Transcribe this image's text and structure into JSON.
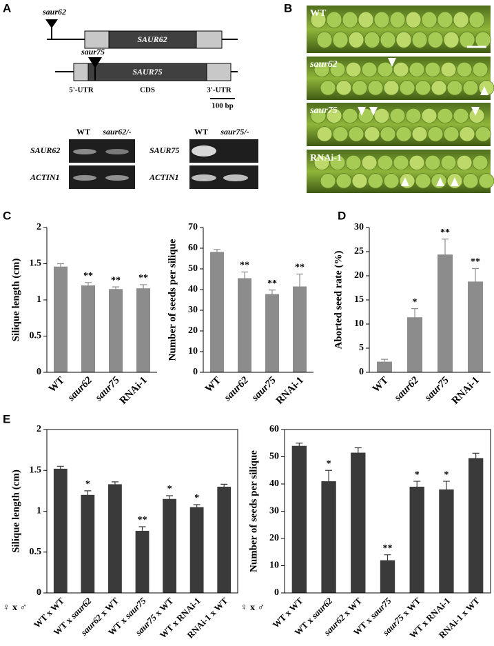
{
  "panel_labels": [
    "A",
    "B",
    "C",
    "D",
    "E"
  ],
  "gene_diagram": {
    "genes": [
      {
        "mutant": "saur62",
        "name": "SAUR62"
      },
      {
        "mutant": "saur75",
        "name": "SAUR75"
      }
    ],
    "regions": [
      "5'-UTR",
      "CDS",
      "3'-UTR"
    ],
    "scale_bar": "100 bp"
  },
  "gels": [
    {
      "lanes": [
        "WT",
        "saur62/-"
      ],
      "bands": [
        "SAUR62",
        "ACTIN1"
      ]
    },
    {
      "lanes": [
        "WT",
        "saur75/-"
      ],
      "bands": [
        "SAUR75",
        "ACTIN1"
      ]
    }
  ],
  "photos": [
    "WT",
    "saur62",
    "saur75",
    "RNAi-1"
  ],
  "chart_data": [
    {
      "type": "bar",
      "ylabel": "Silique length (cm)",
      "categories": [
        "WT",
        "saur62",
        "saur75",
        "RNAi-1"
      ],
      "values": [
        1.46,
        1.2,
        1.15,
        1.16
      ],
      "errors": [
        0.04,
        0.04,
        0.03,
        0.05
      ],
      "annotations": [
        null,
        "**",
        "**",
        "**"
      ],
      "color": "#8c8c8c",
      "ylim": [
        0,
        2
      ],
      "yticks": [
        0,
        0.5,
        1,
        1.5,
        2
      ],
      "frame": false
    },
    {
      "type": "bar",
      "ylabel": "Number of seeds per silique",
      "categories": [
        "WT",
        "saur62",
        "saur75",
        "RNAi-1"
      ],
      "values": [
        58.2,
        45.5,
        37.8,
        41.5
      ],
      "errors": [
        1.2,
        3,
        2,
        6
      ],
      "annotations": [
        null,
        "**",
        "**",
        "**"
      ],
      "color": "#8c8c8c",
      "ylim": [
        0,
        70
      ],
      "yticks": [
        0,
        10,
        20,
        30,
        40,
        50,
        60,
        70
      ],
      "frame": false
    },
    {
      "type": "bar",
      "ylabel": "Aborted seed rate (%)",
      "categories": [
        "WT",
        "saur62",
        "saur75",
        "RNAi-1"
      ],
      "values": [
        2.2,
        11.4,
        24.4,
        18.8
      ],
      "errors": [
        0.5,
        1.8,
        3.2,
        2.7
      ],
      "annotations": [
        null,
        "*",
        "**",
        "**"
      ],
      "color": "#8c8c8c",
      "ylim": [
        0,
        30
      ],
      "yticks": [
        0,
        5,
        10,
        15,
        20,
        25,
        30
      ],
      "frame": false
    },
    {
      "type": "bar",
      "ylabel": "Silique length (cm)",
      "cross_label": "♀ x ♂",
      "categories": [
        "WT x WT",
        "WT x saur62",
        "saur62 x WT",
        "WT x saur75",
        "saur75 x WT",
        "WT x RNAi-1",
        "RNAi-1 x WT"
      ],
      "values": [
        1.52,
        1.2,
        1.33,
        0.76,
        1.15,
        1.05,
        1.3
      ],
      "errors": [
        0.03,
        0.05,
        0.03,
        0.05,
        0.04,
        0.03,
        0.03
      ],
      "annotations": [
        null,
        "*",
        null,
        "**",
        "*",
        "*",
        null
      ],
      "color": "#3a3a3a",
      "ylim": [
        0,
        2
      ],
      "yticks": [
        0,
        0.5,
        1,
        1.5,
        2
      ],
      "frame": true
    },
    {
      "type": "bar",
      "ylabel": "Number of seeds per silique",
      "cross_label": "♀ x ♂",
      "categories": [
        "WT x WT",
        "WT x saur62",
        "saur62 x WT",
        "WT x saur75",
        "saur75 x WT",
        "WT x RNAi-1",
        "RNAi-1 x WT"
      ],
      "values": [
        54,
        41,
        51.5,
        12,
        39,
        38,
        49.5
      ],
      "errors": [
        1,
        4,
        1.8,
        2,
        2,
        3,
        1.8
      ],
      "annotations": [
        null,
        "*",
        null,
        "**",
        "*",
        "*",
        null
      ],
      "color": "#3a3a3a",
      "ylim": [
        0,
        60
      ],
      "yticks": [
        0,
        10,
        20,
        30,
        40,
        50,
        60
      ],
      "frame": true
    }
  ]
}
